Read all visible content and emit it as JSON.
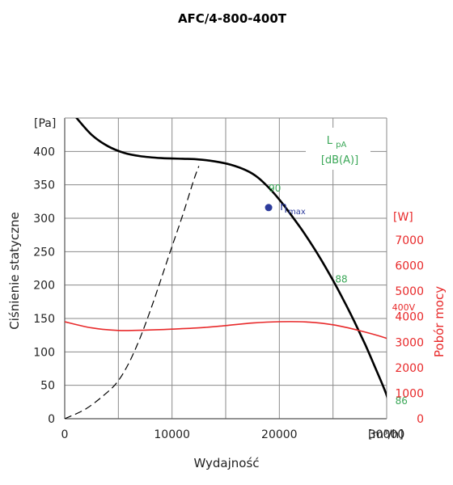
{
  "chart_data": {
    "type": "line",
    "title": "AFC/4-800-400T",
    "xlabel": "Wydajność",
    "x_unit": "[m³/h]",
    "ylabel_left": "Ciśnienie statyczne",
    "y_unit_left": "[Pa]",
    "ylabel_right": "Pobór mocy",
    "y_unit_right": "[W]",
    "xlim": [
      0,
      30000
    ],
    "ylim_left": [
      0,
      450
    ],
    "ylim_right": [
      0,
      7000
    ],
    "x_ticks": [
      "0",
      "10000",
      "20000",
      "30000"
    ],
    "y_ticks_left": [
      "0",
      "50",
      "100",
      "150",
      "200",
      "250",
      "300",
      "350",
      "400"
    ],
    "y_ticks_right": [
      "0",
      "1000",
      "2000",
      "3000",
      "4000",
      "5000",
      "6000",
      "7000"
    ],
    "grid": true,
    "legend_box": {
      "line1": "L",
      "sub1": "pA",
      "line2": "[dB(A)]",
      "color": "#3aa757"
    },
    "series": [
      {
        "name": "",
        "axis": "left",
        "color": "#000000",
        "style": "solid",
        "x": [
          1000,
          2500,
          4000,
          5500,
          7000,
          9000,
          11000,
          12500,
          14000,
          15500,
          17000,
          18000,
          19000,
          20000,
          21000,
          22000,
          23000,
          24000,
          25000,
          26000,
          27000,
          28000,
          29000,
          30000,
          30600
        ],
        "y": [
          452,
          425,
          408,
          398,
          393,
          390,
          389,
          388,
          385,
          380,
          371,
          361,
          346,
          328,
          307,
          285,
          261,
          235,
          207,
          177,
          145,
          111,
          74,
          35,
          0
        ]
      },
      {
        "name": "",
        "axis": "left",
        "color": "#000000",
        "style": "dashed",
        "x": [
          0,
          2000,
          4000,
          5000,
          6000,
          7000,
          8000,
          9000,
          10000,
          11000,
          12000,
          12500
        ],
        "y": [
          0,
          15,
          40,
          57,
          84,
          120,
          163,
          210,
          258,
          305,
          356,
          378
        ]
      },
      {
        "name": "400V",
        "axis": "right",
        "color": "#e8292a",
        "style": "solid",
        "x": [
          0,
          2500,
          5000,
          7500,
          10000,
          12500,
          15000,
          17500,
          20000,
          22500,
          25000,
          27500,
          30000,
          31500
        ],
        "y": [
          3800,
          3560,
          3460,
          3470,
          3510,
          3560,
          3650,
          3750,
          3800,
          3790,
          3680,
          3450,
          3150,
          2850
        ]
      }
    ],
    "annotations": {
      "eta_label": "η",
      "eta_sub": "max",
      "eta_point": {
        "x": 19000,
        "y": 316
      },
      "eta_color": "#2d3c9c",
      "efficiency_labels": [
        {
          "text": "90",
          "x": 19000,
          "y": 340
        },
        {
          "text": "88",
          "x": 25200,
          "y": 204
        },
        {
          "text": "86",
          "x": 30800,
          "y": 22
        }
      ],
      "efficiency_color": "#3aa757",
      "series_label": {
        "text": "400V",
        "x": 30500,
        "y": 4250
      }
    }
  }
}
